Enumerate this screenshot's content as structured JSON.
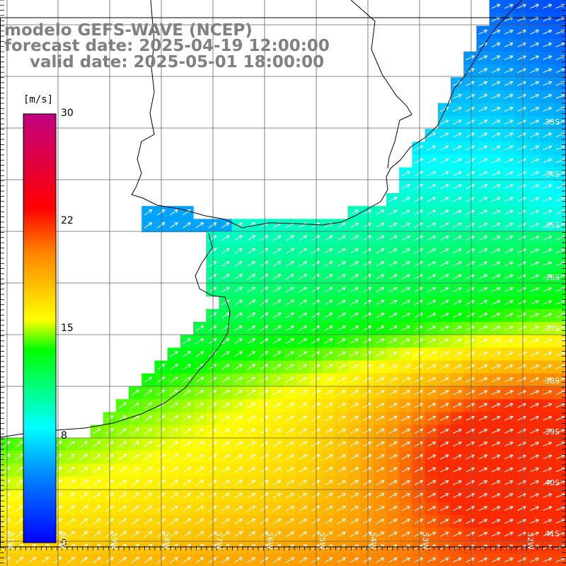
{
  "header": {
    "model": "modelo GEFS-WAVE (NCEP)",
    "forecast": "forecast date: 2025-04-19 12:00:00",
    "valid": "valid date: 2025-05-01 18:00:00"
  },
  "colorbar": {
    "unit": "[m/s]",
    "ticks": [
      "30",
      "22",
      "15",
      "8",
      "0"
    ],
    "tick_values": [
      30,
      22,
      15,
      8,
      0
    ],
    "colors": [
      "#0000ff",
      "#0080ff",
      "#00ffff",
      "#00ff00",
      "#ffff00",
      "#ff8000",
      "#ff0000",
      "#c00080"
    ]
  },
  "axes": {
    "lat_labels": [
      "33S",
      "34S",
      "35S",
      "36S",
      "37S",
      "38S",
      "39S",
      "40S",
      "41S"
    ],
    "lon_labels": [
      "61W",
      "60W",
      "59W",
      "58W",
      "57W",
      "56W",
      "55W",
      "54W",
      "53W",
      "52W"
    ]
  },
  "colors": {
    "land": "#ffffff",
    "coast": "#000000",
    "grid": "#606060"
  }
}
